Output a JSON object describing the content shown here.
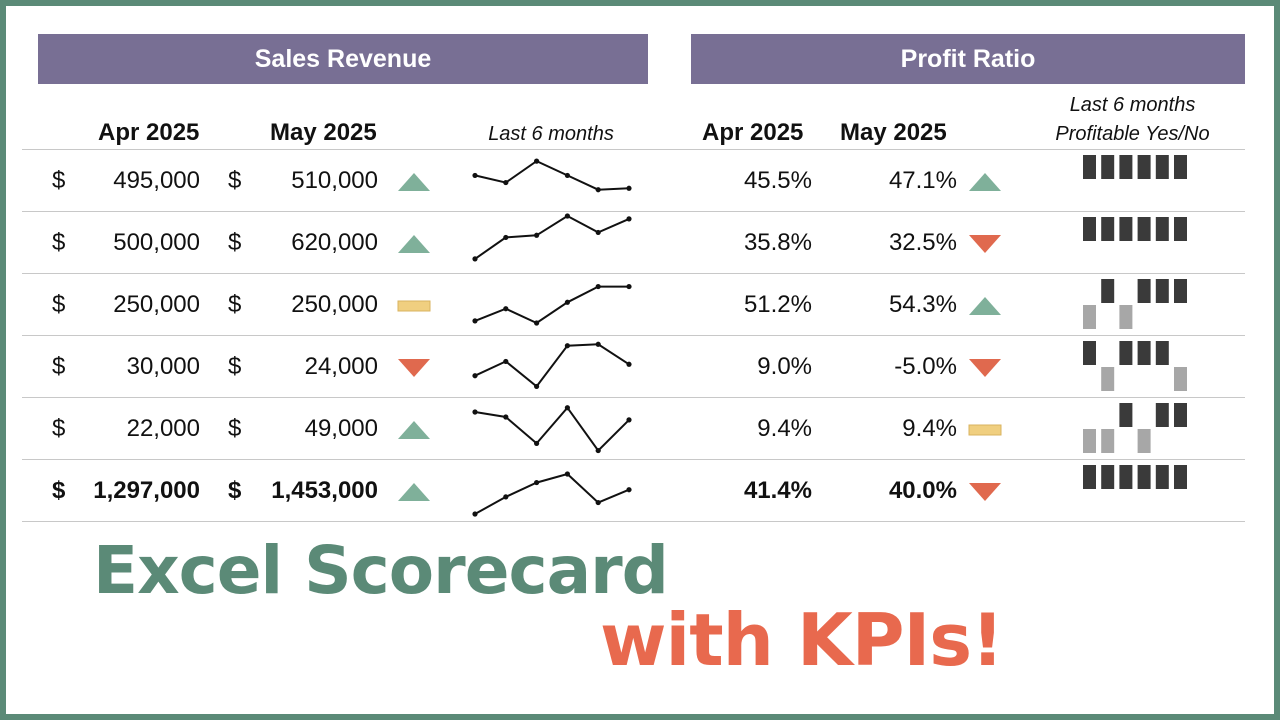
{
  "sales": {
    "title": "Sales Revenue",
    "col1": "Apr 2025",
    "col2": "May 2025",
    "spark_label": "Last 6 months",
    "currency": "$",
    "rows": [
      {
        "apr": "495,000",
        "may": "510,000",
        "trend": "up",
        "spark": [
          4,
          3,
          6,
          4,
          2,
          2.2
        ]
      },
      {
        "apr": "500,000",
        "may": "620,000",
        "trend": "up",
        "spark": [
          1,
          4,
          4.3,
          7,
          4.7,
          6.6
        ]
      },
      {
        "apr": "250,000",
        "may": "250,000",
        "trend": "flat",
        "spark": [
          1,
          2.7,
          0.7,
          3.6,
          5.8,
          5.8
        ]
      },
      {
        "apr": "30,000",
        "may": "24,000",
        "trend": "down",
        "spark": [
          2,
          4,
          0.5,
          6.2,
          6.4,
          3.6
        ]
      },
      {
        "apr": "22,000",
        "may": "49,000",
        "trend": "up",
        "spark": [
          5.6,
          4.9,
          1.2,
          6.2,
          0.2,
          4.5
        ]
      },
      {
        "apr": "1,297,000",
        "may": "1,453,000",
        "trend": "up",
        "spark": [
          0,
          2.4,
          4.4,
          5.6,
          1.6,
          3.4
        ],
        "bold": true
      }
    ]
  },
  "profit": {
    "title": "Profit Ratio",
    "col1": "Apr 2025",
    "col2": "May 2025",
    "label_line1": "Last 6 months",
    "label_line2": "Profitable Yes/No",
    "rows": [
      {
        "apr": "45.5%",
        "may": "47.1%",
        "trend": "up",
        "yesno": [
          1,
          1,
          1,
          1,
          1,
          1
        ]
      },
      {
        "apr": "35.8%",
        "may": "32.5%",
        "trend": "down",
        "yesno": [
          1,
          1,
          1,
          1,
          1,
          1
        ]
      },
      {
        "apr": "51.2%",
        "may": "54.3%",
        "trend": "up",
        "yesno": [
          0,
          1,
          0,
          1,
          1,
          1
        ]
      },
      {
        "apr": "9.0%",
        "may": "-5.0%",
        "trend": "down",
        "yesno": [
          1,
          0,
          1,
          1,
          1,
          0
        ]
      },
      {
        "apr": "9.4%",
        "may": "9.4%",
        "trend": "flat",
        "yesno": [
          0,
          0,
          1,
          0,
          1,
          1
        ]
      },
      {
        "apr": "41.4%",
        "may": "40.0%",
        "trend": "down",
        "yesno": [
          1,
          1,
          1,
          1,
          1,
          1
        ],
        "bold": true
      }
    ]
  },
  "colors": {
    "up": "#7fb09a",
    "down": "#e0694e",
    "flat": "#f0cf80",
    "yes": "#3a3a3a",
    "no": "#a7a7a7",
    "spark": "#111111"
  },
  "headline": {
    "line1": "Excel Scorecard",
    "line2": "with KPIs!"
  }
}
